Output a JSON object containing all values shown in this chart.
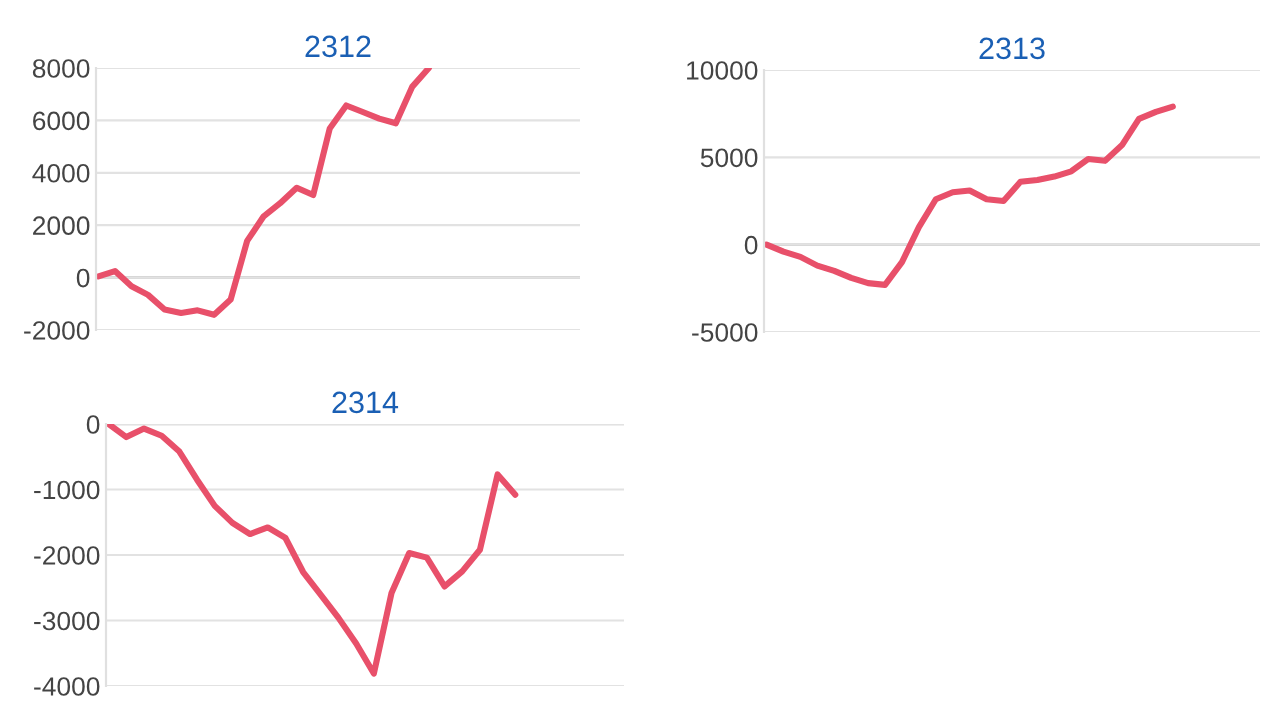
{
  "chart_data": [
    {
      "type": "line",
      "title": "2312",
      "categories": [
        null,
        null,
        null,
        null,
        null,
        null,
        null,
        null,
        null,
        null,
        null,
        null,
        null,
        null,
        null,
        null,
        null,
        null,
        null,
        null,
        null,
        null,
        null,
        null,
        null,
        null,
        null,
        null,
        null,
        null
      ],
      "series": [
        {
          "color": "#e8506a",
          "values": [
            50,
            250,
            -330,
            -660,
            -1220,
            -1350,
            -1250,
            -1420,
            -840,
            1400,
            2340,
            2840,
            3430,
            3150,
            5690,
            6570,
            6320,
            6070,
            5890,
            7290,
            8000,
            null,
            null,
            null,
            null,
            null,
            null,
            null,
            null,
            null
          ]
        }
      ],
      "ylim": [
        -2000,
        8000
      ],
      "yticks": [
        -2000,
        0,
        2000,
        4000,
        6000,
        8000
      ],
      "grid": "y",
      "tick_labels": "y",
      "legend": false
    },
    {
      "type": "line",
      "title": "2313",
      "categories": [
        null,
        null,
        null,
        null,
        null,
        null,
        null,
        null,
        null,
        null,
        null,
        null,
        null,
        null,
        null,
        null,
        null,
        null,
        null,
        null,
        null,
        null,
        null,
        null,
        null,
        null,
        null,
        null,
        null,
        null
      ],
      "series": [
        {
          "color": "#e8506a",
          "values": [
            0,
            -400,
            -700,
            -1200,
            -1500,
            -1900,
            -2200,
            -2300,
            -1000,
            1000,
            2600,
            3000,
            3100,
            2600,
            2500,
            3600,
            3700,
            3900,
            4200,
            4900,
            4800,
            5700,
            7200,
            7600,
            7900,
            null,
            null,
            null,
            null,
            null
          ]
        }
      ],
      "ylim": [
        -5000,
        10000
      ],
      "yticks": [
        -5000,
        0,
        5000,
        10000
      ],
      "grid": "y",
      "tick_labels": "y",
      "legend": false
    },
    {
      "type": "line",
      "title": "2314",
      "categories": [
        null,
        null,
        null,
        null,
        null,
        null,
        null,
        null,
        null,
        null,
        null,
        null,
        null,
        null,
        null,
        null,
        null,
        null,
        null,
        null,
        null,
        null,
        null,
        null,
        null,
        null,
        null,
        null,
        null,
        null
      ],
      "series": [
        {
          "color": "#e8506a",
          "values": [
            0,
            -200,
            -70,
            -180,
            -420,
            -850,
            -1250,
            -1510,
            -1680,
            -1580,
            -1740,
            -2260,
            -2610,
            -2960,
            -3350,
            -3810,
            -2580,
            -1970,
            -2040,
            -2480,
            -2250,
            -1920,
            -770,
            -1080,
            null,
            null,
            null,
            null,
            null,
            null
          ]
        }
      ],
      "ylim": [
        -4000,
        0
      ],
      "yticks": [
        -4000,
        -3000,
        -2000,
        -1000,
        0
      ],
      "grid": "y",
      "tick_labels": "y",
      "legend": false
    }
  ]
}
